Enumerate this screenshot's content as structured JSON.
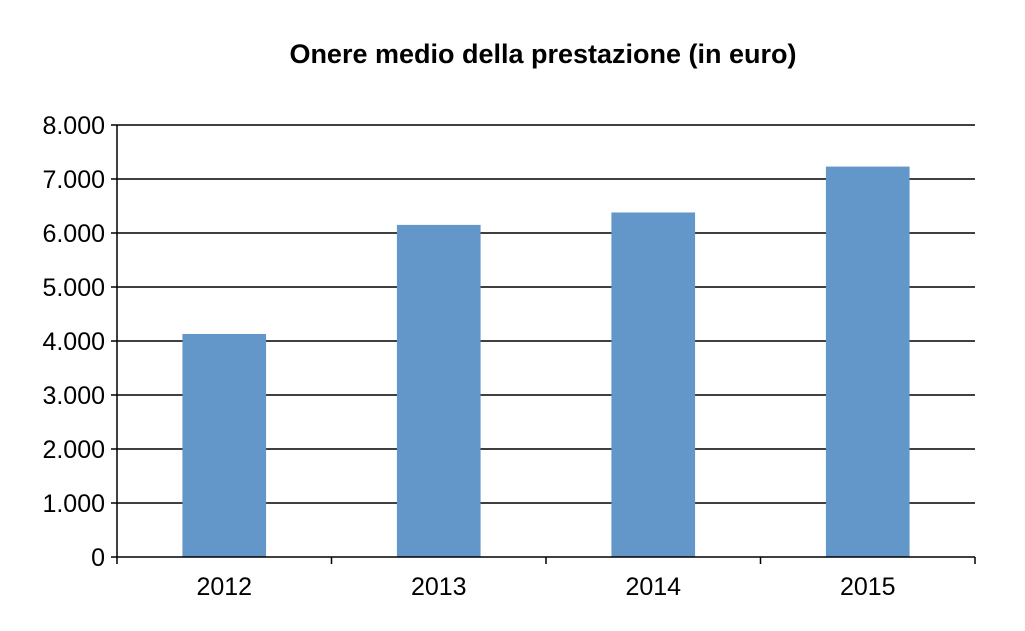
{
  "chart_data": {
    "type": "bar",
    "title": "Onere medio della prestazione (in euro)",
    "xlabel": "",
    "ylabel": "",
    "categories": [
      "2012",
      "2013",
      "2014",
      "2015"
    ],
    "values": [
      4130,
      6150,
      6380,
      7230
    ],
    "ylim": [
      0,
      8000
    ],
    "yticks": [
      0,
      1000,
      2000,
      3000,
      4000,
      5000,
      6000,
      7000,
      8000
    ],
    "ytick_labels": [
      "0",
      "1.000",
      "2.000",
      "3.000",
      "4.000",
      "5.000",
      "6.000",
      "7.000",
      "8.000"
    ],
    "grid": true,
    "legend": "none",
    "bar_color": "#6396c9",
    "grid_color": "#000000"
  }
}
